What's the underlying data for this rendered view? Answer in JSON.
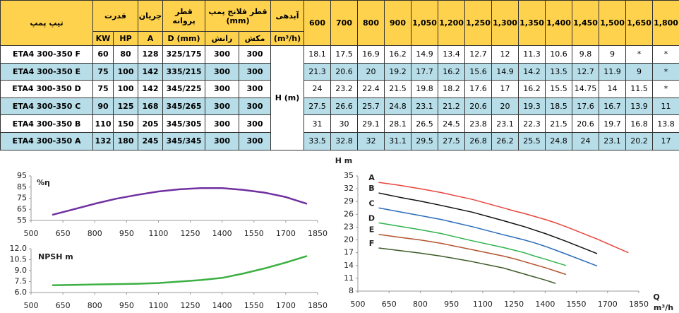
{
  "table": {
    "header_top": [
      "تیپ پمپ",
      "قدرت",
      "جریان",
      "قطر پروانه",
      "قطر فلانج پمپ (mm)",
      "آبدهی"
    ],
    "header_sub": [
      "KW",
      "HP",
      "A",
      "D (mm)",
      "رانش",
      "مکش",
      "(m³/h)"
    ],
    "flows": [
      "600",
      "700",
      "800",
      "900",
      "1,050",
      "1,200",
      "1,250",
      "1,300",
      "1,350",
      "1,400",
      "1,450",
      "1,500",
      "1,650",
      "1,800"
    ],
    "head_label": "H (m)",
    "rows": [
      [
        "ETA4 300-350 F",
        "60",
        "80",
        "128",
        "325/175",
        "300",
        "300",
        "18.1",
        "17.5",
        "16.9",
        "16.2",
        "14.9",
        "13.4",
        "12.7",
        "12",
        "11.3",
        "10.6",
        "9.8",
        "9",
        "*",
        "*"
      ],
      [
        "ETA4 300-350 E",
        "75",
        "100",
        "142",
        "335/215",
        "300",
        "300",
        "21.3",
        "20.6",
        "20",
        "19.2",
        "17.7",
        "16.2",
        "15.6",
        "14.9",
        "14.2",
        "13.5",
        "12.7",
        "11.9",
        "9",
        "*"
      ],
      [
        "ETA4 300-350 D",
        "75",
        "100",
        "142",
        "345/225",
        "300",
        "300",
        "24",
        "23.2",
        "22.4",
        "21.5",
        "19.8",
        "18.2",
        "17.6",
        "17",
        "16.2",
        "15.5",
        "14.75",
        "14",
        "11.5",
        "*"
      ],
      [
        "ETA4 300-350 C",
        "90",
        "125",
        "168",
        "345/265",
        "300",
        "300",
        "27.5",
        "26.6",
        "25.7",
        "24.8",
        "23.1",
        "21.2",
        "20.6",
        "20",
        "19.3",
        "18.5",
        "17.6",
        "16.7",
        "13.9",
        "11"
      ],
      [
        "ETA4 300-350 B",
        "110",
        "150",
        "205",
        "345/305",
        "300",
        "300",
        "31",
        "30",
        "29.1",
        "28.1",
        "26.5",
        "24.5",
        "23.8",
        "23.1",
        "22.3",
        "21.5",
        "20.6",
        "19.7",
        "16.8",
        "13.8"
      ],
      [
        "ETA4 300-350 A",
        "132",
        "180",
        "245",
        "345/345",
        "300",
        "300",
        "33.5",
        "32.8",
        "32",
        "31.1",
        "29.5",
        "27.5",
        "26.8",
        "26.2",
        "25.5",
        "24.8",
        "24",
        "23.1",
        "20.2",
        "17"
      ]
    ]
  },
  "chart_data": [
    {
      "type": "line",
      "ylabel": "%η",
      "x": [
        600,
        700,
        800,
        900,
        1000,
        1100,
        1200,
        1300,
        1400,
        1500,
        1600,
        1700,
        1800
      ],
      "values": [
        60,
        65,
        70,
        74.5,
        78,
        81,
        83,
        84,
        84,
        82.5,
        80,
        76,
        70
      ],
      "color": "#7030a0",
      "xlim": [
        500,
        1850
      ],
      "xticks": [
        500,
        650,
        800,
        950,
        1100,
        1250,
        1400,
        1550,
        1700,
        1850
      ],
      "ylim": [
        55,
        95
      ],
      "yticks": [
        55,
        65,
        75,
        85,
        95
      ],
      "grid": false
    },
    {
      "type": "line",
      "ylabel": "NPSH m",
      "x": [
        600,
        800,
        1000,
        1100,
        1200,
        1300,
        1400,
        1500,
        1600,
        1700,
        1800
      ],
      "values": [
        7.0,
        7.1,
        7.2,
        7.3,
        7.5,
        7.7,
        8.0,
        8.6,
        9.3,
        10.1,
        11.0
      ],
      "color": "#3cb043",
      "xlim": [
        500,
        1850
      ],
      "xticks": [
        500,
        650,
        800,
        950,
        1100,
        1250,
        1400,
        1550,
        1700,
        1850
      ],
      "ylim": [
        6,
        12
      ],
      "yticks": [
        {
          "value": 6,
          "label": "6.0"
        },
        7.5,
        {
          "value": 9,
          "label": "9.0"
        },
        10.5,
        {
          "value": 12,
          "label": "12.0"
        }
      ],
      "grid": false
    },
    {
      "type": "line",
      "ylabel": "H m",
      "xlabel": "Q",
      "xlabel_unit": "m³/h",
      "x": [
        600,
        700,
        800,
        900,
        1050,
        1200,
        1250,
        1300,
        1350,
        1400,
        1450,
        1500,
        1650,
        1800
      ],
      "series": [
        {
          "name": "A",
          "color": "#e8453c",
          "values": [
            33.5,
            32.8,
            32,
            31.1,
            29.5,
            27.5,
            26.8,
            26.2,
            25.5,
            24.8,
            24,
            23.1,
            20.2,
            17
          ]
        },
        {
          "name": "B",
          "color": "#111111",
          "values": [
            31,
            30,
            29.1,
            28.1,
            26.5,
            24.5,
            23.8,
            23.1,
            22.3,
            21.5,
            20.6,
            19.7,
            16.8,
            null
          ]
        },
        {
          "name": "C",
          "color": "#2a6cb8",
          "values": [
            27.5,
            26.6,
            25.7,
            24.8,
            23.1,
            21.2,
            20.6,
            20,
            19.3,
            18.5,
            17.6,
            16.7,
            13.9,
            null
          ]
        },
        {
          "name": "D",
          "color": "#2fb34c",
          "values": [
            24,
            23.2,
            22.4,
            21.5,
            19.8,
            18.2,
            17.6,
            17,
            16.2,
            15.5,
            14.75,
            14,
            null,
            null
          ]
        },
        {
          "name": "E",
          "color": "#b3532c",
          "values": [
            21.3,
            20.6,
            20,
            19.2,
            17.7,
            16.2,
            15.6,
            14.9,
            14.2,
            13.5,
            12.7,
            11.9,
            null,
            null
          ]
        },
        {
          "name": "F",
          "color": "#3d5a28",
          "values": [
            18.1,
            17.5,
            16.9,
            16.2,
            14.9,
            13.4,
            12.7,
            12,
            11.3,
            10.6,
            9.8,
            null,
            null,
            null
          ]
        }
      ],
      "xlim": [
        500,
        1850
      ],
      "xticks": [
        500,
        650,
        800,
        950,
        1100,
        1250,
        1400,
        1550,
        1700,
        1850
      ],
      "ylim": [
        8,
        35
      ],
      "yticks": [
        8,
        11,
        14,
        17,
        20,
        23,
        26,
        29,
        32,
        35
      ],
      "grid": false
    }
  ]
}
